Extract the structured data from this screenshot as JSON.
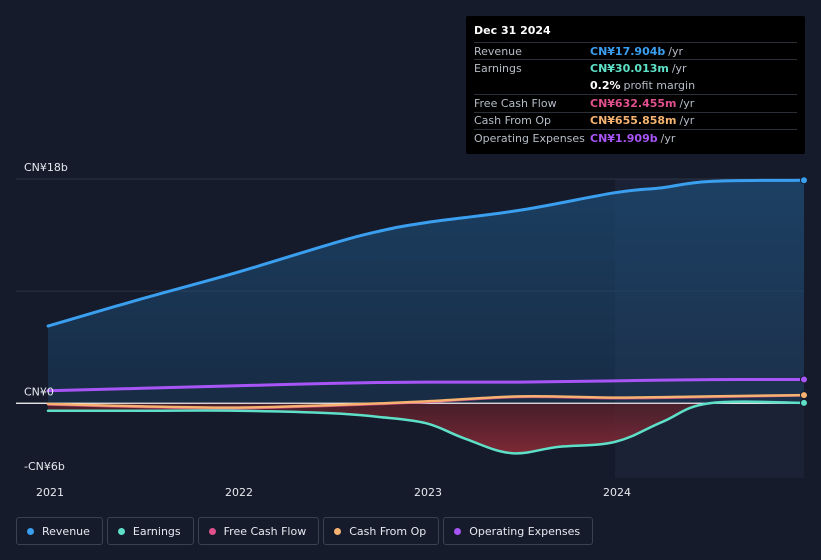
{
  "tooltip": {
    "date": "Dec 31 2024",
    "rows": [
      {
        "name": "Revenue",
        "value": "CN¥17.904b",
        "unit": "/yr",
        "color": "#3b9ff0"
      },
      {
        "name": "Earnings",
        "value": "CN¥30.013m",
        "unit": "/yr",
        "color": "#5ee0c8"
      },
      {
        "name": "",
        "value": "0.2%",
        "unit": "profit margin",
        "color": "#ffffff"
      },
      {
        "name": "Free Cash Flow",
        "value": "CN¥632.455m",
        "unit": "/yr",
        "color": "#e0508c"
      },
      {
        "name": "Cash From Op",
        "value": "CN¥655.858m",
        "unit": "/yr",
        "color": "#f5b270"
      },
      {
        "name": "Operating Expenses",
        "value": "CN¥1.909b",
        "unit": "/yr",
        "color": "#a855f7"
      }
    ]
  },
  "legend": [
    {
      "label": "Revenue",
      "color": "#3b9ff0"
    },
    {
      "label": "Earnings",
      "color": "#5ee0c8"
    },
    {
      "label": "Free Cash Flow",
      "color": "#e0508c"
    },
    {
      "label": "Cash From Op",
      "color": "#f5b270"
    },
    {
      "label": "Operating Expenses",
      "color": "#a855f7"
    }
  ],
  "chart_data": {
    "type": "area",
    "title": "",
    "xlabel": "",
    "ylabel": "",
    "ylim": [
      -6,
      18
    ],
    "y_unit": "CN¥ b",
    "yticks": [
      {
        "value": 18,
        "label": "CN¥18b"
      },
      {
        "value": 0,
        "label": "CN¥0"
      },
      {
        "value": -6,
        "label": "-CN¥6b"
      }
    ],
    "xticks": [
      {
        "value": 2021.0,
        "label": "2021"
      },
      {
        "value": 2022.0,
        "label": "2022"
      },
      {
        "value": 2023.0,
        "label": "2023"
      },
      {
        "value": 2024.0,
        "label": "2024"
      }
    ],
    "xlim": [
      2021.0,
      2025.0
    ],
    "highlight_from": 2024.0,
    "series": [
      {
        "name": "Revenue",
        "color": "#3b9ff0",
        "area": true,
        "x": [
          2021.0,
          2021.5,
          2022.0,
          2022.5,
          2022.75,
          2023.0,
          2023.5,
          2024.0,
          2024.25,
          2024.5,
          2025.0
        ],
        "y": [
          6.2,
          8.4,
          10.5,
          12.8,
          13.8,
          14.5,
          15.5,
          16.9,
          17.3,
          17.8,
          17.904
        ]
      },
      {
        "name": "Operating Expenses",
        "color": "#a855f7",
        "area": false,
        "x": [
          2021.0,
          2021.5,
          2022.0,
          2022.5,
          2023.0,
          2023.5,
          2024.0,
          2024.5,
          2025.0
        ],
        "y": [
          1.0,
          1.2,
          1.4,
          1.6,
          1.7,
          1.7,
          1.8,
          1.9,
          1.909
        ]
      },
      {
        "name": "Earnings",
        "color": "#5ee0c8",
        "area": false,
        "x": [
          2021.0,
          2021.5,
          2022.0,
          2022.5,
          2022.75,
          2023.0,
          2023.2,
          2023.45,
          2023.7,
          2024.0,
          2024.25,
          2024.5,
          2025.0
        ],
        "y": [
          -0.6,
          -0.6,
          -0.6,
          -0.8,
          -1.1,
          -1.6,
          -2.8,
          -4.0,
          -3.5,
          -3.1,
          -1.5,
          0.0,
          0.03
        ]
      },
      {
        "name": "Free Cash Flow",
        "color": "#e0508c",
        "area": false,
        "x": [
          2021.0,
          2021.5,
          2022.0,
          2022.5,
          2023.0,
          2023.5,
          2024.0,
          2024.5,
          2025.0
        ],
        "y": [
          -0.1,
          -0.3,
          -0.4,
          -0.2,
          0.1,
          0.5,
          0.4,
          0.5,
          0.632
        ]
      },
      {
        "name": "Cash From Op",
        "color": "#f5b270",
        "area": false,
        "x": [
          2021.0,
          2021.5,
          2022.0,
          2022.5,
          2023.0,
          2023.5,
          2024.0,
          2024.5,
          2025.0
        ],
        "y": [
          -0.05,
          -0.25,
          -0.35,
          -0.15,
          0.15,
          0.55,
          0.45,
          0.55,
          0.656
        ]
      }
    ]
  }
}
